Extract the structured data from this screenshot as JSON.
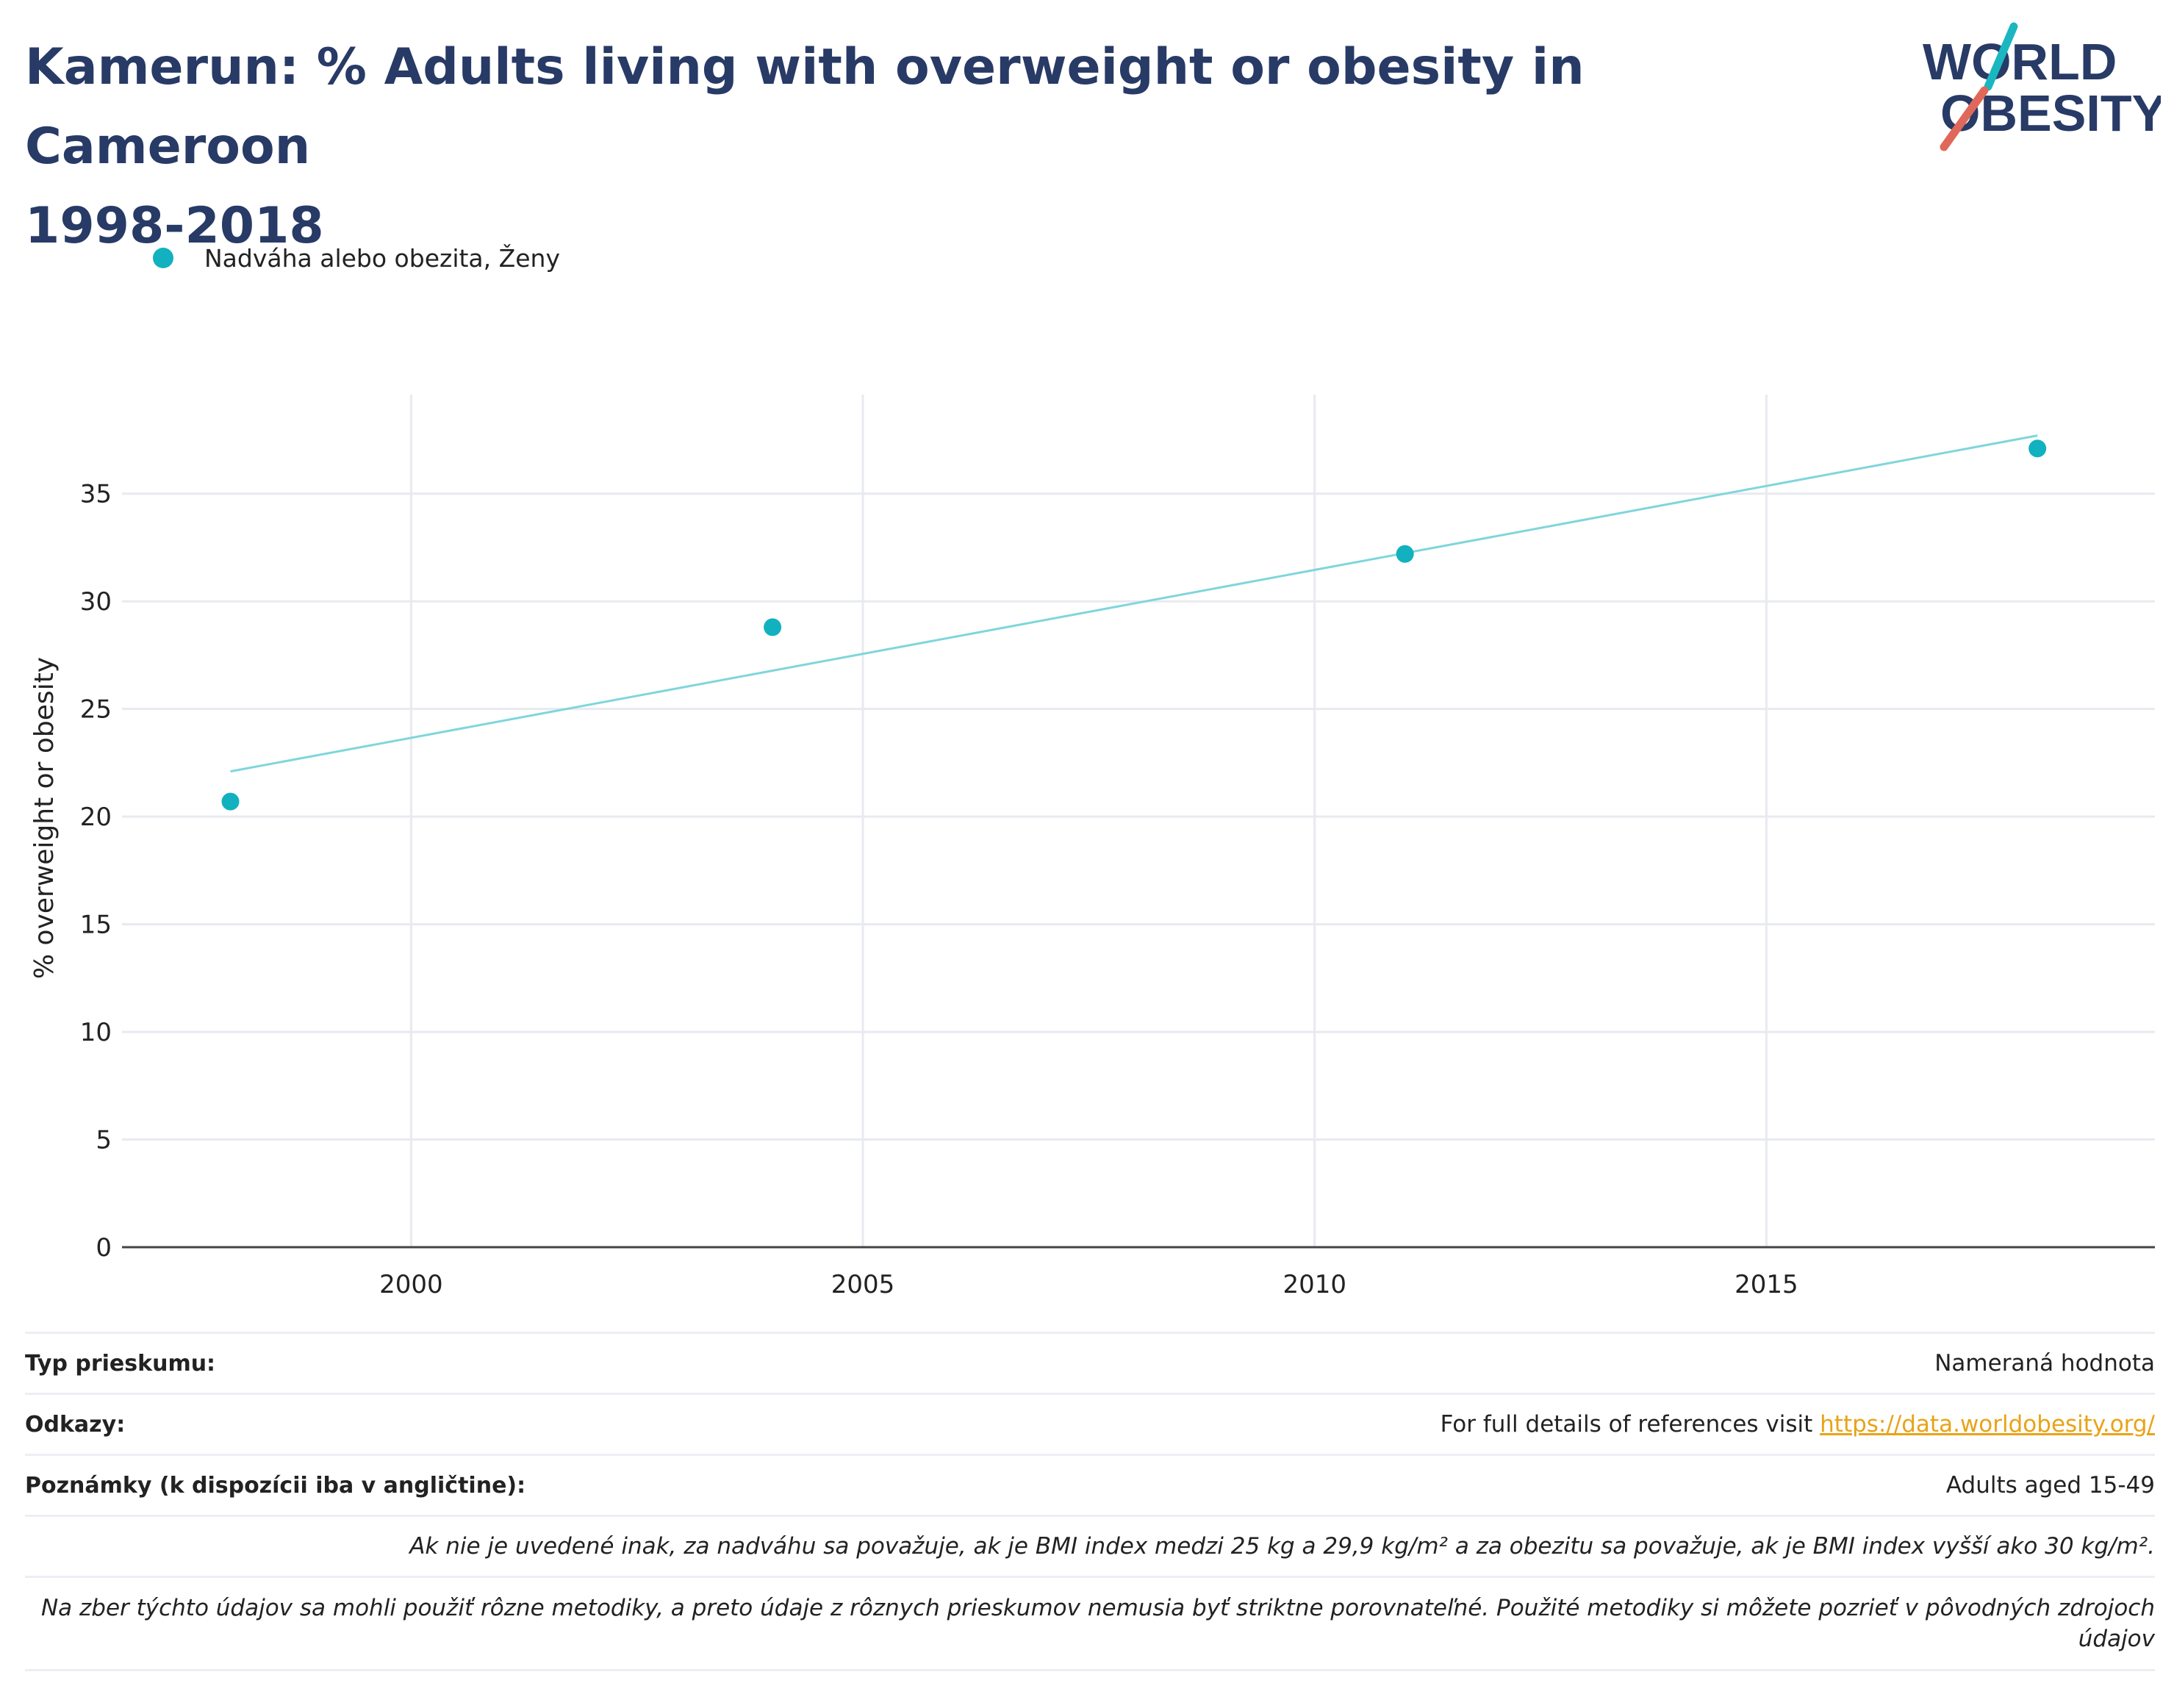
{
  "title_line1": "Kamerun: % Adults living with overweight or obesity in Cameroon",
  "title_line2": "1998-2018",
  "logo": {
    "line1": "WORLD",
    "line2": "OBESITY",
    "colors": {
      "text": "#283a66",
      "teal": "#1bb7c0",
      "coral": "#e0685a"
    }
  },
  "legend": {
    "label": "Nadváha alebo obezita, Ženy",
    "color": "#12b1bf"
  },
  "chart_data": {
    "type": "scatter",
    "title": "",
    "xlabel": "",
    "ylabel": "% overweight or obesity",
    "xlim": [
      1996.8,
      2019.3
    ],
    "ylim": [
      0,
      39.6
    ],
    "x_ticks": [
      2000,
      2005,
      2010,
      2015
    ],
    "y_ticks": [
      0,
      5,
      10,
      15,
      20,
      25,
      30,
      35
    ],
    "grid": true,
    "legend_position": "top-left",
    "series": [
      {
        "name": "Nadváha alebo obezita, Ženy",
        "color": "#12b1bf",
        "x": [
          1998,
          2004,
          2011,
          2018
        ],
        "y": [
          20.7,
          28.8,
          32.2,
          37.1
        ]
      }
    ],
    "trendline": {
      "color": "#7fd6dc",
      "x": [
        1998,
        2018
      ],
      "y": [
        22.1,
        37.7
      ]
    }
  },
  "table": {
    "survey_type_label": "Typ prieskumu:",
    "survey_type_value": "Nameraná hodnota",
    "references_label": "Odkazy:",
    "references_text": "For full details of references visit ",
    "references_link": "https://data.worldobesity.org/",
    "notes_label": "Poznámky (k dispozícii iba v angličtine):",
    "notes_value": "Adults aged 15-49",
    "note_bmi": "Ak nie je uvedené inak, za nadváhu sa považuje, ak je BMI index medzi 25 kg a 29,9 kg/m² a za obezitu sa považuje, ak je BMI index vyšší ako 30 kg/m².",
    "note_methods": "Na zber týchto údajov sa mohli použiť rôzne metodiky, a preto údaje z rôznych prieskumov nemusia byť striktne porovnateľné. Použité metodiky si môžete pozrieť v pôvodných zdrojoch údajov"
  }
}
